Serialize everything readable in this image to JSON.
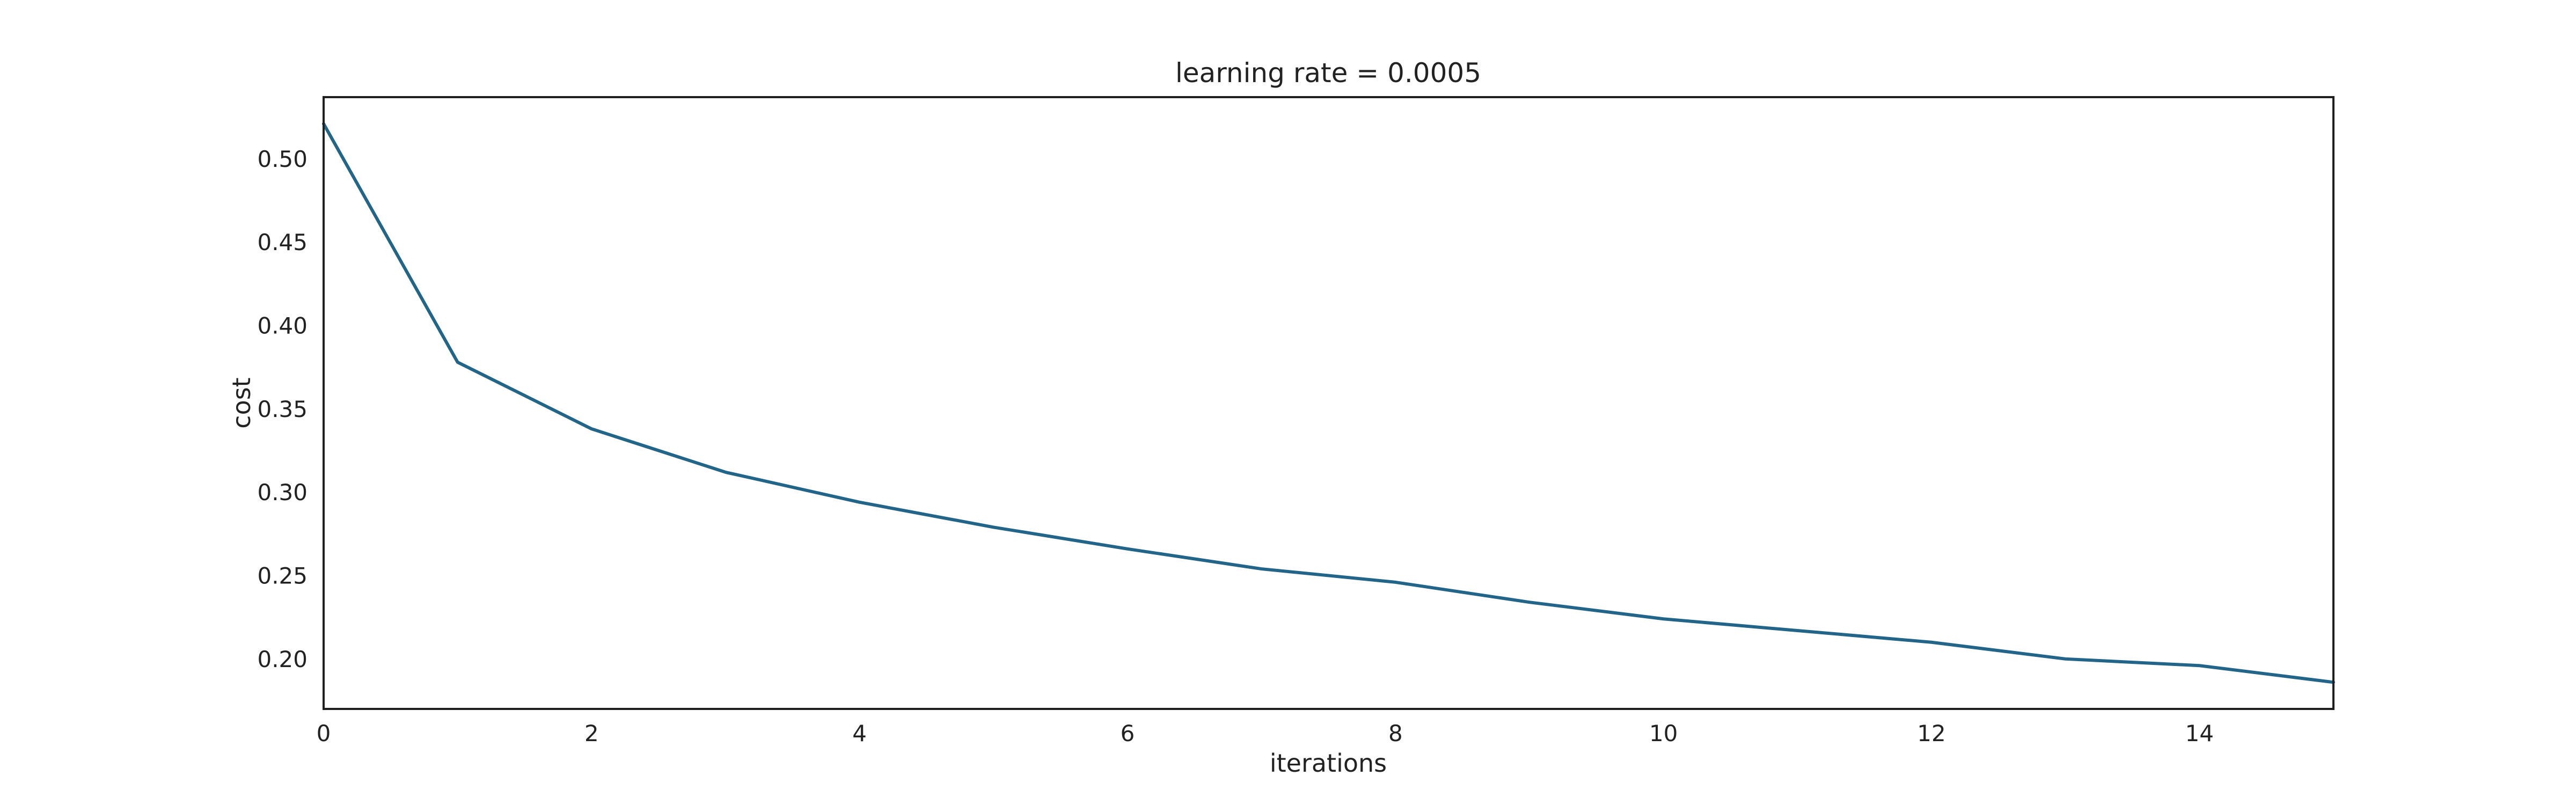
{
  "chart_data": {
    "type": "line",
    "title": "learning rate = 0.0005",
    "xlabel": "iterations",
    "ylabel": "cost",
    "xlim": [
      0,
      15
    ],
    "ylim": [
      0.17,
      0.537
    ],
    "x_ticks": [
      0,
      2,
      4,
      6,
      8,
      10,
      12,
      14
    ],
    "x_tick_labels": [
      "0",
      "2",
      "4",
      "6",
      "8",
      "10",
      "12",
      "14"
    ],
    "y_ticks": [
      0.2,
      0.25,
      0.3,
      0.35,
      0.4,
      0.45,
      0.5
    ],
    "y_tick_labels": [
      "0.20",
      "0.25",
      "0.30",
      "0.35",
      "0.40",
      "0.45",
      "0.50"
    ],
    "grid": false,
    "series": [
      {
        "color": "#236589",
        "x": [
          0,
          1,
          2,
          3,
          4,
          5,
          6,
          7,
          8,
          9,
          10,
          11,
          12,
          13,
          14,
          15
        ],
        "y": [
          0.521,
          0.378,
          0.338,
          0.312,
          0.294,
          0.279,
          0.266,
          0.254,
          0.246,
          0.234,
          0.224,
          0.217,
          0.21,
          0.2,
          0.196,
          0.186
        ]
      }
    ]
  }
}
